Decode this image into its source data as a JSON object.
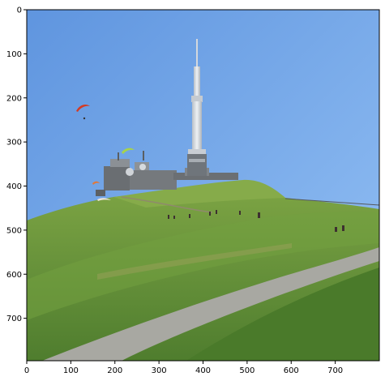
{
  "axes": {
    "x_ticks": [
      "0",
      "100",
      "200",
      "300",
      "400",
      "500",
      "600",
      "700"
    ],
    "y_ticks": [
      "0",
      "100",
      "200",
      "300",
      "400",
      "500",
      "600",
      "700"
    ]
  },
  "scene": {
    "colors": {
      "sky_top": "#5f95df",
      "sky_bottom": "#8cbcf3",
      "grass_dark": "#4b7a2b",
      "grass_mid": "#6f9a3c",
      "grass_light": "#8aa74d",
      "path": "#a9a9a3",
      "building": "#6a6e72",
      "tower": "#d7dbe0"
    },
    "icons": [
      "paraglider-red-icon",
      "paraglider-green-icon",
      "paraglider-orange-icon"
    ]
  }
}
